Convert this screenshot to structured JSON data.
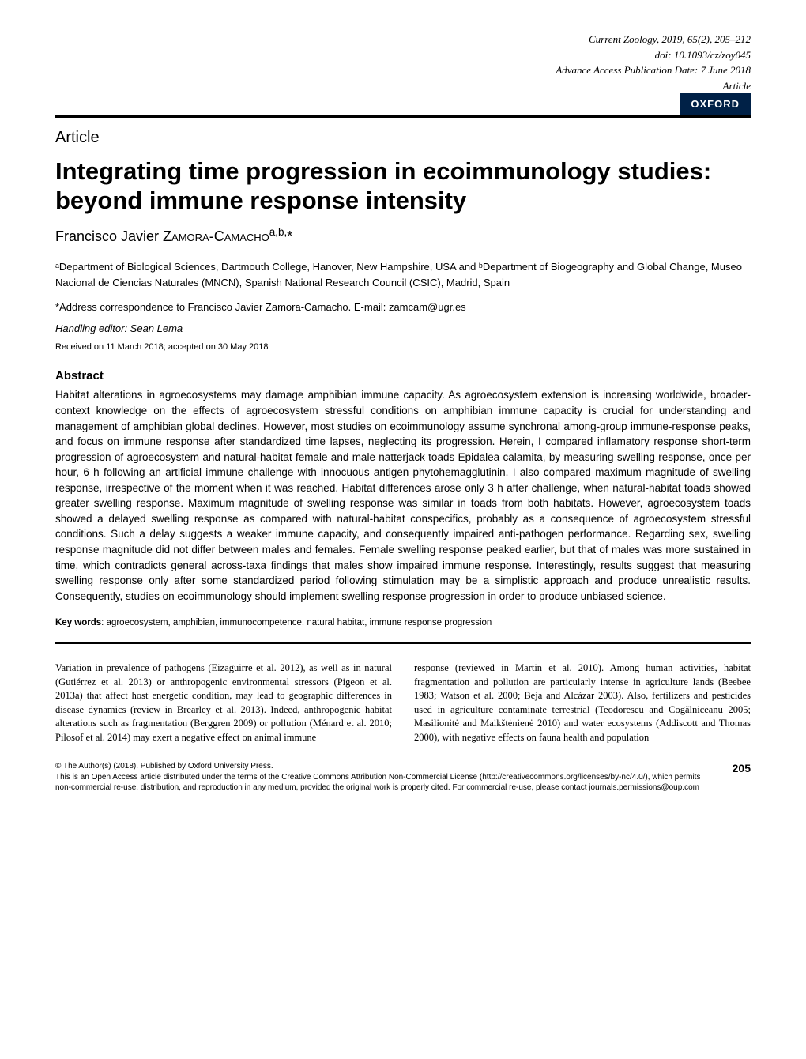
{
  "header": {
    "journal_citation": "Current Zoology, 2019, 65(2), 205–212",
    "doi": "doi: 10.1093/cz/zoy045",
    "advance_date": "Advance Access Publication Date: 7 June 2018",
    "type_line": "Article",
    "publisher_badge": "OXFORD"
  },
  "article_label": "Article",
  "title": "Integrating time progression in ecoimmunology studies: beyond immune response intensity",
  "author": {
    "first": "Francisco Javier ",
    "surname_caps": "Zamora-Camacho",
    "sup": "a,b,",
    "star": "*"
  },
  "affiliations": "ᵃDepartment of Biological Sciences, Dartmouth College, Hanover, New Hampshire, USA and ᵇDepartment of Biogeography and Global Change, Museo Nacional de Ciencias Naturales (MNCN), Spanish National Research Council (CSIC), Madrid, Spain",
  "correspondence": "*Address correspondence to Francisco Javier Zamora-Camacho. E-mail: zamcam@ugr.es",
  "editor": "Handling editor: Sean Lema",
  "dates": "Received on 11 March 2018; accepted on 30 May 2018",
  "abstract_heading": "Abstract",
  "abstract_body": "Habitat alterations in agroecosystems may damage amphibian immune capacity. As agroecosystem extension is increasing worldwide, broader-context knowledge on the effects of agroecosystem stressful conditions on amphibian immune capacity is crucial for understanding and management of amphibian global declines. However, most studies on ecoimmunology assume synchronal among-group immune-response peaks, and focus on immune response after standardized time lapses, neglecting its progression. Herein, I compared inflamatory response short-term progression of agroecosystem and natural-habitat female and male natterjack toads Epidalea calamita, by measuring swelling response, once per hour, 6 h following an artificial immune challenge with innocuous antigen phytohemagglutinin. I also compared maximum magnitude of swelling response, irrespective of the moment when it was reached. Habitat differences arose only 3 h after challenge, when natural-habitat toads showed greater swelling response. Maximum magnitude of swelling response was similar in toads from both habitats. However, agroecosystem toads showed a delayed swelling response as compared with natural-habitat conspecifics, probably as a consequence of agroecosystem stressful conditions. Such a delay suggests a weaker immune capacity, and consequently impaired anti-pathogen performance. Regarding sex, swelling response magnitude did not differ between males and females. Female swelling response peaked earlier, but that of males was more sustained in time, which contradicts general across-taxa findings that males show impaired immune response. Interestingly, results suggest that measuring swelling response only after some standardized period following stimulation may be a simplistic approach and produce unrealistic results. Consequently, studies on ecoimmunology should implement swelling response progression in order to produce unbiased science.",
  "keywords": {
    "label": "Key words",
    "list": ": agroecosystem, amphibian, immunocompetence, natural habitat, immune response progression"
  },
  "body": {
    "col1": "Variation in prevalence of pathogens (Eizaguirre et al. 2012), as well as in natural (Gutiérrez et al. 2013) or anthropogenic environmental stressors (Pigeon et al. 2013a) that affect host energetic condition, may lead to geographic differences in disease dynamics (review in Brearley et al. 2013). Indeed, anthropogenic habitat alterations such as fragmentation (Berggren 2009) or pollution (Ménard et al. 2010; Pilosof et al. 2014) may exert a negative effect on animal immune",
    "col2": "response (reviewed in Martin et al. 2010). Among human activities, habitat fragmentation and pollution are particularly intense in agriculture lands (Beebee 1983; Watson et al. 2000; Beja and Alcázar 2003). Also, fertilizers and pesticides used in agriculture contaminate terrestrial (Teodorescu and Cogălniceanu 2005; Masilionitė and Maikštėnienė 2010) and water ecosystems (Addiscott and Thomas 2000), with negative effects on fauna health and population"
  },
  "footer": {
    "copyright": "© The Author(s) (2018). Published by Oxford University Press.",
    "license": "This is an Open Access article distributed under the terms of the Creative Commons Attribution Non-Commercial License (http://creativecommons.org/licenses/by-nc/4.0/), which permits non-commercial re-use, distribution, and reproduction in any medium, provided the original work is properly cited. For commercial re-use, please contact journals.permissions@oup.com",
    "page_number": "205"
  },
  "colors": {
    "oxford_bg": "#002147",
    "oxford_fg": "#ffffff",
    "link": "#0066cc",
    "rule": "#000000",
    "text": "#000000",
    "background": "#ffffff"
  }
}
